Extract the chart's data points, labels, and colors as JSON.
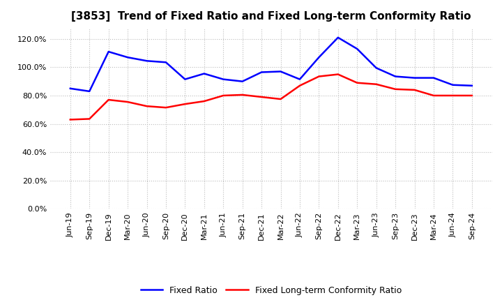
{
  "title": "[3853]  Trend of Fixed Ratio and Fixed Long-term Conformity Ratio",
  "x_labels": [
    "Jun-19",
    "Sep-19",
    "Dec-19",
    "Mar-20",
    "Jun-20",
    "Sep-20",
    "Dec-20",
    "Mar-21",
    "Jun-21",
    "Sep-21",
    "Dec-21",
    "Mar-22",
    "Jun-22",
    "Sep-22",
    "Dec-22",
    "Mar-23",
    "Jun-23",
    "Sep-23",
    "Dec-23",
    "Mar-24",
    "Jun-24",
    "Sep-24"
  ],
  "fixed_ratio": [
    85.0,
    83.0,
    111.0,
    107.0,
    104.5,
    103.5,
    91.5,
    95.5,
    91.5,
    90.0,
    96.5,
    97.0,
    91.5,
    107.0,
    121.0,
    113.0,
    99.5,
    93.5,
    92.5,
    92.5,
    87.5,
    87.0
  ],
  "fixed_lt_ratio": [
    63.0,
    63.5,
    77.0,
    75.5,
    72.5,
    71.5,
    74.0,
    76.0,
    80.0,
    80.5,
    79.0,
    77.5,
    87.0,
    93.5,
    95.0,
    89.0,
    88.0,
    84.5,
    84.0,
    80.0,
    80.0,
    80.0
  ],
  "fixed_ratio_color": "#0000FF",
  "fixed_lt_ratio_color": "#FF0000",
  "ylim": [
    0,
    128
  ],
  "yticks": [
    0,
    20,
    40,
    60,
    80,
    100,
    120
  ],
  "background_color": "#FFFFFF",
  "plot_bg_color": "#FFFFFF",
  "grid_color": "#BBBBBB",
  "legend_fixed_ratio": "Fixed Ratio",
  "legend_fixed_lt_ratio": "Fixed Long-term Conformity Ratio",
  "title_fontsize": 11,
  "tick_fontsize": 8,
  "legend_fontsize": 9
}
